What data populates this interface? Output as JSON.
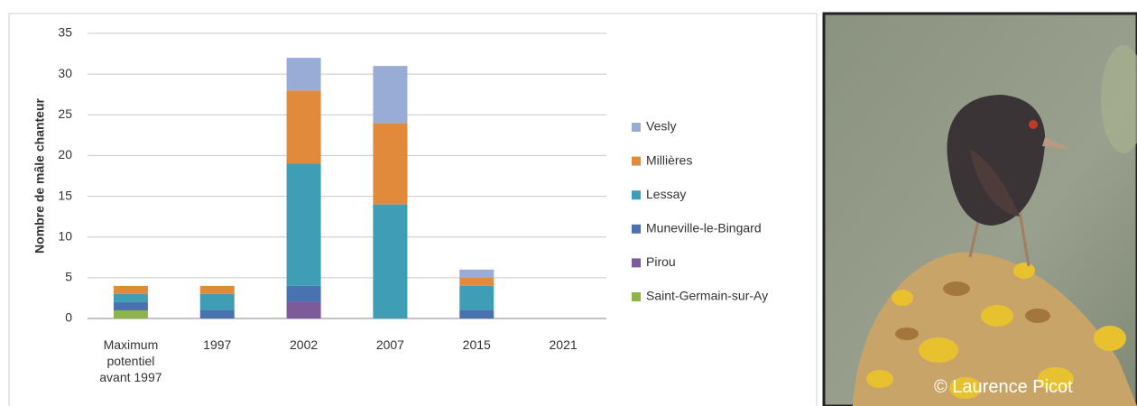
{
  "chart_data": {
    "type": "stacked-bar",
    "y_label": "Nombre de mâle chanteur",
    "categories": [
      "Maximum potentiel avant 1997",
      "1997",
      "2002",
      "2007",
      "2015",
      "2021"
    ],
    "series": [
      {
        "name": "Saint-Germain-sur-Ay",
        "color": "#8db34b",
        "values": [
          1,
          0,
          0,
          0,
          0,
          0
        ]
      },
      {
        "name": "Pirou",
        "color": "#7d5a9a",
        "values": [
          0,
          0,
          2,
          0,
          0,
          0
        ]
      },
      {
        "name": "Muneville-le-Bingard",
        "color": "#4a72b0",
        "values": [
          1,
          1,
          2,
          0,
          1,
          0
        ]
      },
      {
        "name": "Lessay",
        "color": "#3d9eb5",
        "values": [
          1,
          2,
          15,
          14,
          3,
          0
        ]
      },
      {
        "name": "Millières",
        "color": "#e08a3c",
        "values": [
          1,
          1,
          9,
          10,
          1,
          0
        ]
      },
      {
        "name": "Vesly",
        "color": "#98acd6",
        "values": [
          0,
          0,
          4,
          7,
          1,
          0
        ]
      }
    ],
    "ylim": [
      0,
      35
    ],
    "yticks": [
      0,
      5,
      10,
      15,
      20,
      25,
      30,
      35
    ],
    "grid": true
  },
  "photo": {
    "credit": "© Laurence Picot"
  }
}
